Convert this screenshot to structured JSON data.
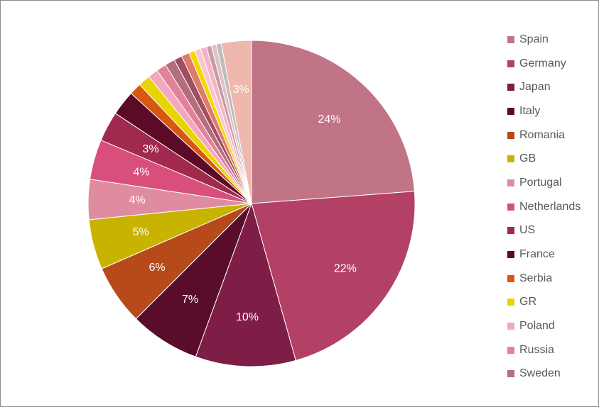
{
  "chart_data": {
    "type": "pie",
    "title": "",
    "slices": [
      {
        "label": "Spain",
        "value": 24,
        "color": "#c07486",
        "show_label": "24%"
      },
      {
        "label": "Germany",
        "value": 22,
        "color": "#b34166",
        "show_label": "22%"
      },
      {
        "label": "Japan",
        "value": 10,
        "color": "#7e1d45",
        "show_label": "10%"
      },
      {
        "label": "Italy",
        "value": 7,
        "color": "#5a0d2a",
        "show_label": "7%"
      },
      {
        "label": "Romania",
        "value": 6,
        "color": "#b64a1b",
        "show_label": "6%"
      },
      {
        "label": "GB",
        "value": 5,
        "color": "#c8b400",
        "show_label": "5%"
      },
      {
        "label": "Portugal",
        "value": 4,
        "color": "#e08ca0",
        "show_label": "4%"
      },
      {
        "label": "Netherlands",
        "value": 4,
        "color": "#d84f7c",
        "show_label": "4%"
      },
      {
        "label": "US",
        "value": 3,
        "color": "#a0294e",
        "show_label": "3%"
      },
      {
        "label": "France",
        "value": 2.5,
        "color": "#5b0a28",
        "show_label": ""
      },
      {
        "label": "Serbia",
        "value": 1.2,
        "color": "#d9580f",
        "show_label": ""
      },
      {
        "label": "GR",
        "value": 1.2,
        "color": "#e8d400",
        "show_label": ""
      },
      {
        "label": "Poland",
        "value": 1.0,
        "color": "#f2a8bd",
        "show_label": ""
      },
      {
        "label": "Russia",
        "value": 1.0,
        "color": "#e3819b",
        "show_label": ""
      },
      {
        "label": "Sweden",
        "value": 1.0,
        "color": "#b46e7c",
        "show_label": ""
      },
      {
        "label": "",
        "value": 0.8,
        "color": "#9e4f60",
        "show_label": ""
      },
      {
        "label": "",
        "value": 0.8,
        "color": "#e07a6a",
        "show_label": ""
      },
      {
        "label": "",
        "value": 0.6,
        "color": "#f0d800",
        "show_label": ""
      },
      {
        "label": "",
        "value": 0.6,
        "color": "#f6c6d4",
        "show_label": ""
      },
      {
        "label": "",
        "value": 0.6,
        "color": "#f3b5c6",
        "show_label": ""
      },
      {
        "label": "",
        "value": 0.5,
        "color": "#c89aa4",
        "show_label": ""
      },
      {
        "label": "",
        "value": 0.5,
        "color": "#dfc2c6",
        "show_label": ""
      },
      {
        "label": "",
        "value": 0.5,
        "color": "#c2bbbb",
        "show_label": ""
      },
      {
        "label": "",
        "value": 3,
        "color": "#eeb8ad",
        "show_label": "3%"
      }
    ],
    "legend": {
      "position": "right",
      "entries": [
        "Spain",
        "Germany",
        "Japan",
        "Italy",
        "Romania",
        "GB",
        "Portugal",
        "Netherlands",
        "US",
        "France",
        "Serbia",
        "GR",
        "Poland",
        "Russia",
        "Sweden"
      ]
    }
  }
}
